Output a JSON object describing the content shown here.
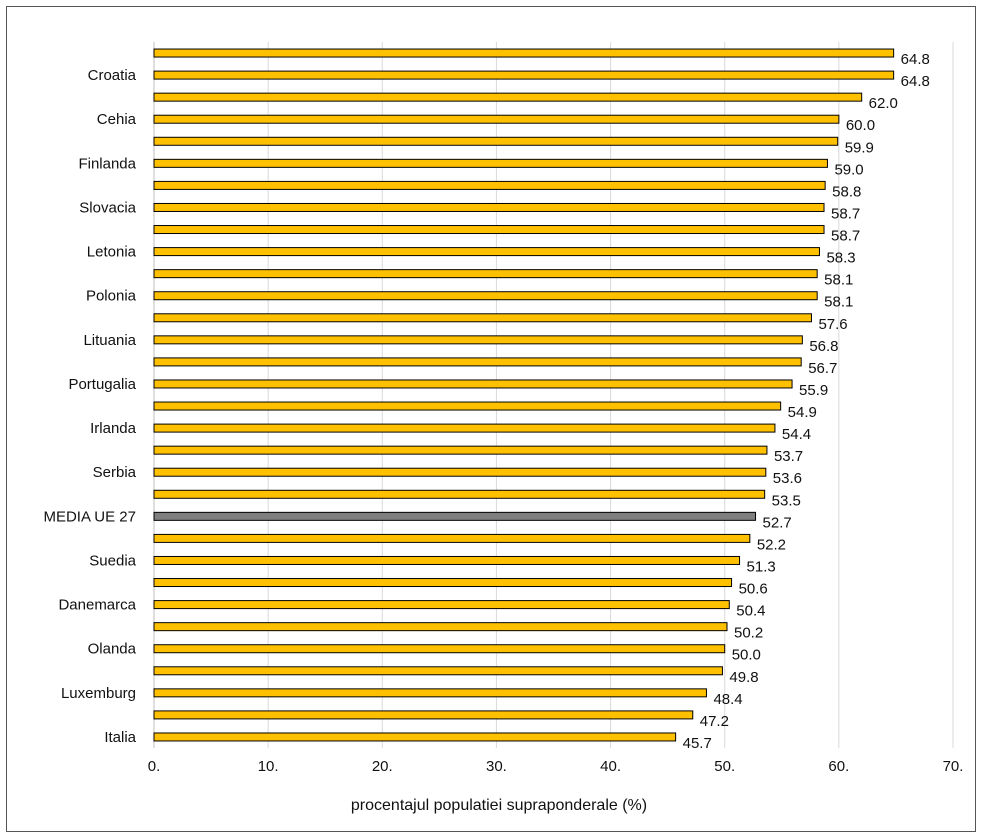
{
  "chart_data": {
    "type": "bar",
    "orientation": "horizontal",
    "title": "",
    "xlabel": "procentajul populatiei supraponderale (%)",
    "ylabel": "",
    "xlim": [
      0,
      70
    ],
    "x_ticks": [
      "0.",
      "10.",
      "20.",
      "30.",
      "40.",
      "50.",
      "60.",
      "70."
    ],
    "grid": "vertical",
    "legend": "none",
    "categories": [
      "",
      "Croatia",
      "",
      "Cehia",
      "",
      "Finlanda",
      "",
      "Slovacia",
      "",
      "Letonia",
      "",
      "Polonia",
      "",
      "Lituania",
      "",
      "Portugalia",
      "",
      "Irlanda",
      "",
      "Serbia",
      "",
      "MEDIA UE 27",
      "",
      "Suedia",
      "",
      "Danemarca",
      "",
      "Olanda",
      "",
      "Luxemburg",
      "",
      "Italia"
    ],
    "values": [
      64.8,
      64.8,
      62.0,
      60.0,
      59.9,
      59.0,
      58.8,
      58.7,
      58.7,
      58.3,
      58.1,
      58.1,
      57.6,
      56.8,
      56.7,
      55.9,
      54.9,
      54.4,
      53.7,
      53.6,
      53.5,
      52.7,
      52.2,
      51.3,
      50.6,
      50.4,
      50.2,
      50.0,
      49.8,
      48.4,
      47.2,
      45.7
    ],
    "value_labels": [
      "64.8",
      "64.8",
      "62.0",
      "60.0",
      "59.9",
      "59.0",
      "58.8",
      "58.7",
      "58.7",
      "58.3",
      "58.1",
      "58.1",
      "57.6",
      "56.8",
      "56.7",
      "55.9",
      "54.9",
      "54.4",
      "53.7",
      "53.6",
      "53.5",
      "52.7",
      "52.2",
      "51.3",
      "50.6",
      "50.4",
      "50.2",
      "50.0",
      "49.8",
      "48.4",
      "47.2",
      "45.7"
    ],
    "highlight_category": "MEDIA UE 27",
    "colors": {
      "bar": "#FFC000",
      "highlight": "#7F7F7F",
      "outline": "#000000",
      "grid": "#D9D9D9"
    }
  }
}
